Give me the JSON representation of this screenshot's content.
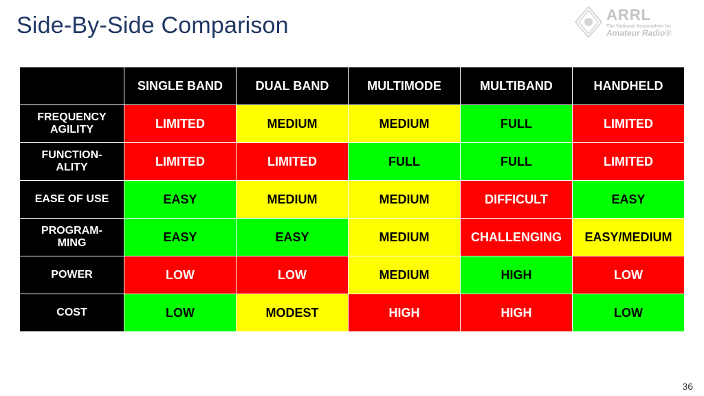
{
  "title": "Side-By-Side Comparison",
  "page_number": "36",
  "logo": {
    "main": "ARRL",
    "sub1": "The National Association for",
    "sub2": "Amateur Radio",
    "reg": "®"
  },
  "colors": {
    "title_color": "#1f3763",
    "header_bg": "#000000",
    "header_fg": "#ffffff",
    "grid_border": "#ffffff",
    "outer_border": "#70ad47",
    "red": "#ff0000",
    "yellow": "#ffff00",
    "green": "#00ff00",
    "cell_text_dark": "#000000",
    "cell_text_light": "#ffffff"
  },
  "table": {
    "columns": [
      "SINGLE BAND",
      "DUAL BAND",
      "MULTIMODE",
      "MULTIBAND",
      "HANDHELD"
    ],
    "rows": [
      {
        "label": "FREQUENCY AGILITY",
        "cells": [
          {
            "text": "LIMITED",
            "bg": "red",
            "fg": "light"
          },
          {
            "text": "MEDIUM",
            "bg": "yellow",
            "fg": "dark"
          },
          {
            "text": "MEDIUM",
            "bg": "yellow",
            "fg": "dark"
          },
          {
            "text": "FULL",
            "bg": "green",
            "fg": "dark"
          },
          {
            "text": "LIMITED",
            "bg": "red",
            "fg": "light"
          }
        ]
      },
      {
        "label": "FUNCTION-ALITY",
        "cells": [
          {
            "text": "LIMITED",
            "bg": "red",
            "fg": "light"
          },
          {
            "text": "LIMITED",
            "bg": "red",
            "fg": "light"
          },
          {
            "text": "FULL",
            "bg": "green",
            "fg": "dark"
          },
          {
            "text": "FULL",
            "bg": "green",
            "fg": "dark"
          },
          {
            "text": "LIMITED",
            "bg": "red",
            "fg": "light"
          }
        ]
      },
      {
        "label": "EASE OF USE",
        "cells": [
          {
            "text": "EASY",
            "bg": "green",
            "fg": "dark"
          },
          {
            "text": "MEDIUM",
            "bg": "yellow",
            "fg": "dark"
          },
          {
            "text": "MEDIUM",
            "bg": "yellow",
            "fg": "dark"
          },
          {
            "text": "DIFFICULT",
            "bg": "red",
            "fg": "light"
          },
          {
            "text": "EASY",
            "bg": "green",
            "fg": "dark"
          }
        ]
      },
      {
        "label": "PROGRAM-MING",
        "cells": [
          {
            "text": "EASY",
            "bg": "green",
            "fg": "dark"
          },
          {
            "text": "EASY",
            "bg": "green",
            "fg": "dark"
          },
          {
            "text": "MEDIUM",
            "bg": "yellow",
            "fg": "dark"
          },
          {
            "text": "CHALLENGING",
            "bg": "red",
            "fg": "light"
          },
          {
            "text": "EASY/MEDIUM",
            "bg": "yellow",
            "fg": "dark"
          }
        ]
      },
      {
        "label": "POWER",
        "cells": [
          {
            "text": "LOW",
            "bg": "red",
            "fg": "light"
          },
          {
            "text": "LOW",
            "bg": "red",
            "fg": "light"
          },
          {
            "text": "MEDIUM",
            "bg": "yellow",
            "fg": "dark"
          },
          {
            "text": "HIGH",
            "bg": "green",
            "fg": "dark"
          },
          {
            "text": "LOW",
            "bg": "red",
            "fg": "light"
          }
        ]
      },
      {
        "label": "COST",
        "cells": [
          {
            "text": "LOW",
            "bg": "green",
            "fg": "dark"
          },
          {
            "text": "MODEST",
            "bg": "yellow",
            "fg": "dark"
          },
          {
            "text": "HIGH",
            "bg": "red",
            "fg": "light"
          },
          {
            "text": "HIGH",
            "bg": "red",
            "fg": "light"
          },
          {
            "text": "LOW",
            "bg": "green",
            "fg": "dark"
          }
        ]
      }
    ]
  }
}
